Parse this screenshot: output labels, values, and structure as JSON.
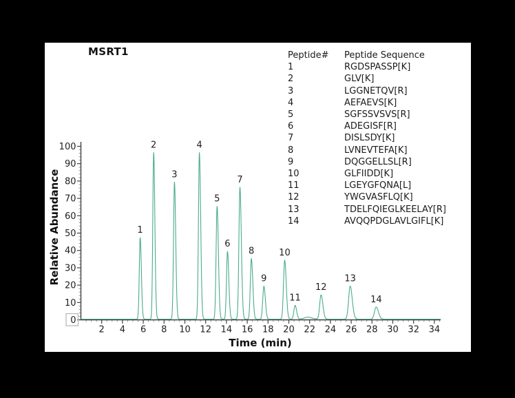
{
  "chart_data": {
    "type": "line",
    "title": "MSRT1",
    "xlabel": "Time (min)",
    "ylabel": "Relative Abundance",
    "xlim": [
      0,
      34.7
    ],
    "ylim": [
      0,
      100
    ],
    "grid": false,
    "x_major_ticks": [
      2,
      4,
      6,
      8,
      10,
      12,
      14,
      16,
      18,
      20,
      22,
      24,
      26,
      28,
      30,
      32,
      34
    ],
    "x_minor_interval": 0.5,
    "y_major_ticks": [
      0,
      10,
      20,
      30,
      40,
      50,
      60,
      70,
      80,
      90,
      100
    ],
    "y_minor_interval": 2,
    "trace_color": "#49ab8a",
    "axis_color": "#404040",
    "minor_tick_color": "#9a9a9a",
    "zero_label_box_color": "#b5b5b5",
    "peaks": [
      {
        "label": "1",
        "rt": 5.7,
        "abundance": 47,
        "width_sigma": 0.085
      },
      {
        "label": "2",
        "rt": 7.0,
        "abundance": 96,
        "width_sigma": 0.085
      },
      {
        "label": "3",
        "rt": 9.0,
        "abundance": 79,
        "width_sigma": 0.09
      },
      {
        "label": "4",
        "rt": 11.4,
        "abundance": 96,
        "width_sigma": 0.09
      },
      {
        "label": "5",
        "rt": 13.1,
        "abundance": 65,
        "width_sigma": 0.095
      },
      {
        "label": "6",
        "rt": 14.1,
        "abundance": 39,
        "width_sigma": 0.095
      },
      {
        "label": "7",
        "rt": 15.3,
        "abundance": 76,
        "width_sigma": 0.1
      },
      {
        "label": "8",
        "rt": 16.4,
        "abundance": 35,
        "width_sigma": 0.1
      },
      {
        "label": "9",
        "rt": 17.6,
        "abundance": 19,
        "width_sigma": 0.105
      },
      {
        "label": "10",
        "rt": 19.6,
        "abundance": 34,
        "width_sigma": 0.11
      },
      {
        "label": "11",
        "rt": 20.6,
        "abundance": 8,
        "width_sigma": 0.11
      },
      {
        "label": "12",
        "rt": 23.1,
        "abundance": 14,
        "width_sigma": 0.13
      },
      {
        "label": "13",
        "rt": 25.9,
        "abundance": 19,
        "width_sigma": 0.15
      },
      {
        "label": "14",
        "rt": 28.4,
        "abundance": 7,
        "width_sigma": 0.16
      }
    ],
    "unlabeled_bumps": [
      {
        "rt": 21.8,
        "abundance": 1.2,
        "width_sigma": 0.3
      }
    ]
  },
  "peptide_table": {
    "headers": [
      "Peptide#",
      "Peptide Sequence"
    ],
    "rows": [
      [
        "1",
        "RGDSPASSP[K]"
      ],
      [
        "2",
        "GLV[K]"
      ],
      [
        "3",
        "LGGNETQV[R]"
      ],
      [
        "4",
        "AEFAEVS[K]"
      ],
      [
        "5",
        "SGFSSVSVS[R]"
      ],
      [
        "6",
        "ADEGISF[R]"
      ],
      [
        "7",
        "DISLSDY[K]"
      ],
      [
        "8",
        "LVNEVTEFA[K]"
      ],
      [
        "9",
        "DQGGELLSL[R]"
      ],
      [
        "10",
        "GLFIIDD[K]"
      ],
      [
        "11",
        "LGEYGFQNA[L]"
      ],
      [
        "12",
        "YWGVASFLQ[K]"
      ],
      [
        "13",
        "TDELFQIEGLKEELAY[R]"
      ],
      [
        "14",
        "AVQQPDGLAVLGIFL[K]"
      ]
    ]
  }
}
